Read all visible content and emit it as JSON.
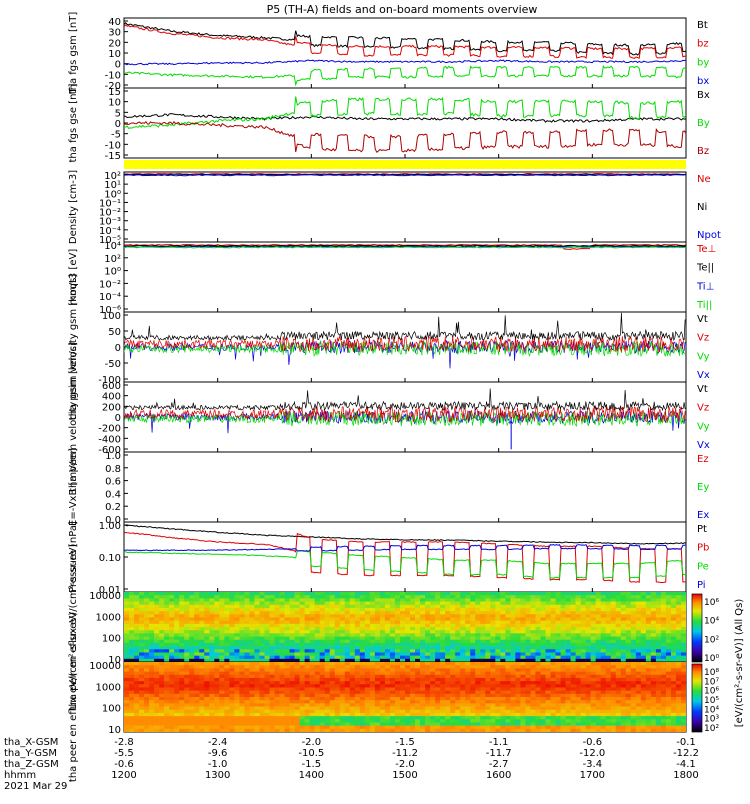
{
  "title": "P5 (TH-A) fields and on-board moments overview",
  "colorbar_label": "[eV/(cm²-s-sr-eV)] (All Qs)",
  "colors": {
    "black": "#000000",
    "red": "#e00000",
    "green": "#00dd00",
    "blue": "#0000dd",
    "darkred": "#aa0000",
    "yellow": "#ffff00"
  },
  "xaxis": {
    "rows": [
      {
        "label": "tha_X-GSM",
        "values": [
          "-2.8",
          "-2.4",
          "-2.0",
          "-1.5",
          "-1.1",
          "-0.6",
          "-0.1"
        ]
      },
      {
        "label": "tha_Y-GSM",
        "values": [
          "-5.5",
          "-9.6",
          "-10.5",
          "-11.2",
          "-11.7",
          "-12.0",
          "-12.2"
        ]
      },
      {
        "label": "tha_Z-GSM",
        "values": [
          "-0.6",
          "-1.0",
          "-1.5",
          "-2.0",
          "-2.7",
          "-3.4",
          "-4.1"
        ]
      },
      {
        "label": "hhmm",
        "values": [
          "1200",
          "1300",
          "1400",
          "1500",
          "1600",
          "1700",
          "1800"
        ]
      }
    ],
    "date": "2021 Mar 29"
  },
  "chart_data": [
    {
      "type": "line",
      "ylabel": "tha fgs gsm [nT]",
      "yticks": [
        "40",
        "30",
        "20",
        "10",
        "0",
        "-10",
        "-20"
      ],
      "ylim": [
        -22,
        42
      ],
      "x": [
        1200,
        1230,
        1300,
        1330,
        1400,
        1430,
        1500,
        1530,
        1600,
        1630,
        1700,
        1730,
        1800
      ],
      "series": [
        {
          "name": "Bt",
          "color": "black",
          "values": [
            37,
            30,
            26,
            24,
            21,
            20,
            19,
            18,
            16,
            16,
            14,
            13,
            15
          ]
        },
        {
          "name": "bz",
          "color": "red",
          "values": [
            35,
            28,
            24,
            22,
            14,
            12,
            12,
            12,
            11,
            11,
            10,
            10,
            11
          ]
        },
        {
          "name": "by",
          "color": "green",
          "values": [
            -8,
            -10,
            -11,
            -12,
            -10,
            -8,
            -8,
            -7,
            -7,
            -7,
            -7,
            -7,
            -8
          ]
        },
        {
          "name": "bx",
          "color": "blue",
          "values": [
            0,
            0,
            1,
            1,
            3,
            2,
            2,
            2,
            3,
            2,
            2,
            2,
            3
          ]
        }
      ]
    },
    {
      "type": "line",
      "ylabel": "tha fgs gse [nT]",
      "yticks": [
        "15",
        "10",
        "5",
        "0",
        "-5",
        "-10",
        "-15"
      ],
      "ylim": [
        -18,
        16
      ],
      "x": [
        1200,
        1230,
        1300,
        1330,
        1400,
        1430,
        1500,
        1530,
        1600,
        1630,
        1700,
        1730,
        1800
      ],
      "series": [
        {
          "name": "Bx",
          "color": "black",
          "values": [
            2,
            3,
            2,
            1,
            2,
            1,
            1,
            1,
            1,
            0,
            0,
            1,
            1
          ]
        },
        {
          "name": "By",
          "color": "green",
          "values": [
            -3,
            -2,
            0,
            1,
            6,
            7,
            7,
            7,
            6,
            6,
            6,
            5,
            6
          ]
        },
        {
          "name": "Bz",
          "color": "darkred",
          "values": [
            -1,
            -1,
            -2,
            -3,
            -10,
            -11,
            -11,
            -10,
            -9,
            -9,
            -8,
            -8,
            -9
          ]
        }
      ]
    },
    {
      "type": "line",
      "ylabel": "Density [cm-3]",
      "yticks": [
        "10²",
        "10¹",
        "10⁰",
        "10⁻¹",
        "10⁻²",
        "10⁻³",
        "10⁻⁴",
        "10⁻⁵"
      ],
      "series": [
        {
          "name": "Ne",
          "color": "red"
        },
        {
          "name": "Ni",
          "color": "black"
        },
        {
          "name": "Npot",
          "color": "blue"
        }
      ]
    },
    {
      "type": "line",
      "ylabel": "moqt3 [eV]",
      "yticks": [
        "10⁴",
        "10²",
        "10⁰",
        "10⁻²",
        "10⁻⁴",
        "10⁻⁶"
      ],
      "series": [
        {
          "name": "Te⊥",
          "color": "red"
        },
        {
          "name": "Te||",
          "color": "black"
        },
        {
          "name": "Ti⊥",
          "color": "blue"
        },
        {
          "name": "Ti||",
          "color": "green"
        }
      ]
    },
    {
      "type": "line",
      "ylabel": "tha peim velocity gsm [km/s]",
      "yticks": [
        "100",
        "50",
        "0",
        "-50",
        "-100"
      ],
      "ylim": [
        -110,
        110
      ],
      "series": [
        {
          "name": "Vt",
          "color": "black"
        },
        {
          "name": "Vz",
          "color": "red"
        },
        {
          "name": "Vy",
          "color": "green"
        },
        {
          "name": "Vx",
          "color": "blue"
        }
      ]
    },
    {
      "type": "line",
      "ylabel": "tha peem velocity gsm [km/s]",
      "yticks": [
        "600",
        "400",
        "200",
        "0",
        "-200",
        "-400",
        "-600"
      ],
      "ylim": [
        -650,
        650
      ],
      "series": [
        {
          "name": "Vt",
          "color": "black"
        },
        {
          "name": "Vz",
          "color": "red"
        },
        {
          "name": "Vy",
          "color": "green"
        },
        {
          "name": "Vx",
          "color": "blue"
        }
      ]
    },
    {
      "type": "line",
      "ylabel": "E=-VxB [mV/m]",
      "yticks": [
        "1.0",
        "0.8",
        "0.6",
        "0.4",
        "0.2",
        "0.0"
      ],
      "ylim": [
        0,
        1
      ],
      "series": [
        {
          "name": "Ez",
          "color": "red"
        },
        {
          "name": "Ey",
          "color": "green"
        },
        {
          "name": "Ex",
          "color": "blue"
        }
      ]
    },
    {
      "type": "line",
      "ylabel": "Pressure [nPa]",
      "yticks": [
        "1.00",
        "0.10",
        "0.01"
      ],
      "x": [
        1200,
        1230,
        1300,
        1330,
        1400,
        1430,
        1500,
        1530,
        1600,
        1630,
        1700,
        1730,
        1800
      ],
      "series": [
        {
          "name": "Pt",
          "color": "black",
          "values": [
            0.9,
            0.7,
            0.55,
            0.45,
            0.4,
            0.35,
            0.33,
            0.32,
            0.3,
            0.28,
            0.27,
            0.25,
            0.26
          ]
        },
        {
          "name": "Pb",
          "color": "red",
          "values": [
            0.55,
            0.38,
            0.28,
            0.24,
            0.1,
            0.08,
            0.08,
            0.08,
            0.07,
            0.06,
            0.06,
            0.05,
            0.05
          ]
        },
        {
          "name": "Pe",
          "color": "green",
          "values": [
            0.14,
            0.13,
            0.12,
            0.11,
            0.09,
            0.07,
            0.06,
            0.05,
            0.05,
            0.04,
            0.04,
            0.04,
            0.05
          ]
        },
        {
          "name": "Pi",
          "color": "blue",
          "values": [
            0.16,
            0.16,
            0.16,
            0.17,
            0.18,
            0.19,
            0.2,
            0.2,
            0.2,
            0.21,
            0.21,
            0.2,
            0.21
          ]
        }
      ]
    },
    {
      "type": "heatmap",
      "ylabel": "tha peir en eflux eV/(cm²-s-sr-eV)",
      "yticks": [
        "10000",
        "1000",
        "100",
        "10"
      ]
    },
    {
      "type": "heatmap",
      "ylabel": "tha peer en eflux eV/(cm²-s-sr-eV)",
      "yticks": [
        "10000",
        "1000",
        "100",
        "10"
      ]
    }
  ],
  "colorbar": {
    "ticks_top": [
      "10⁶",
      "10⁴",
      "10²",
      "10⁰"
    ],
    "ticks_bottom": [
      "10⁸",
      "10⁷",
      "10⁶",
      "10⁵",
      "10⁴",
      "10³",
      "10²"
    ]
  }
}
